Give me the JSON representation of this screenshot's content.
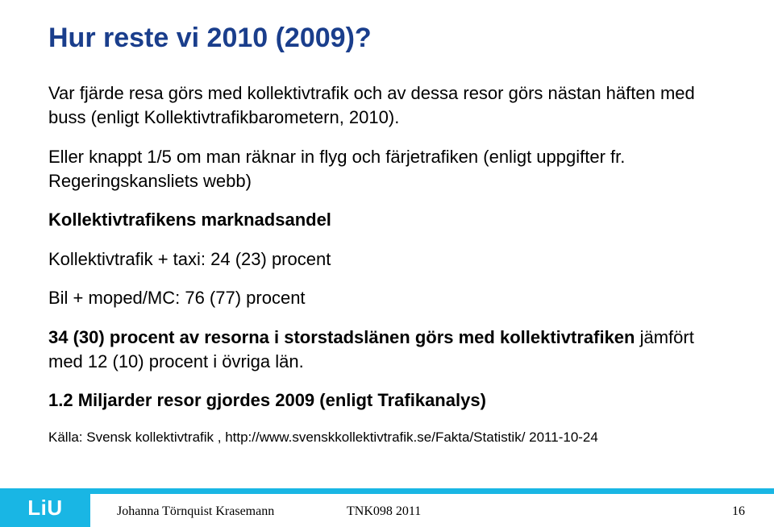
{
  "colors": {
    "title": "#1a3e8c",
    "body": "#000000",
    "blue_strip": "#19b6e4",
    "logo_bg": "#19b6e4",
    "logo_text": "#ffffff",
    "footer_text": "#000000"
  },
  "title": "Hur reste vi 2010 (2009)?",
  "paragraphs": {
    "p1": "Var fjärde resa görs med kollektivtrafik och av dessa resor görs nästan häften med buss (enligt Kollektivtrafikbarometern, 2010).",
    "p2": "Eller knappt 1/5 om man räknar in flyg och färjetrafiken (enligt uppgifter fr. Regeringskansliets webb)",
    "p3_bold": "Kollektivtrafikens marknadsandel",
    "p4": "Kollektivtrafik + taxi: 24 (23) procent",
    "p5": "Bil + moped/MC: 76 (77) procent",
    "p6_lead_bold": "34 (30) procent av resorna i storstadslänen görs med kollektivtrafiken ",
    "p6_tail": "jämfört med 12 (10) procent i övriga län.",
    "p7_bold": "1.2 Miljarder resor gjordes 2009 (enligt Trafikanalys)"
  },
  "source": "Källa: Svensk kollektivtrafik , http://www.svenskkollektivtrafik.se/Fakta/Statistik/ 2011-10-24",
  "footer": {
    "logo": "LiU",
    "author": "Johanna Törnquist Krasemann",
    "course": "TNK098 2011",
    "page": "16"
  }
}
